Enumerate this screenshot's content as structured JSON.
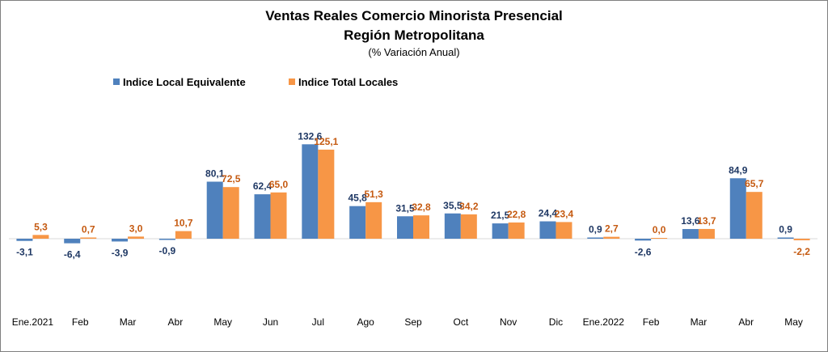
{
  "chart_data": {
    "type": "bar",
    "title": "Ventas Reales Comercio Minorista Presencial",
    "subtitle": "Región Metropolitana",
    "caption": "(% Variación Anual)",
    "categories": [
      "Ene.2021",
      "Feb",
      "Mar",
      "Abr",
      "May",
      "Jun",
      "Jul",
      "Ago",
      "Sep",
      "Oct",
      "Nov",
      "Dic",
      "Ene.2022",
      "Feb",
      "Mar",
      "Abr",
      "May"
    ],
    "series": [
      {
        "name": "Indice Local Equivalente",
        "color": "#4f81bd",
        "values": [
          -3.1,
          -6.4,
          -3.9,
          -0.9,
          80.1,
          62.4,
          132.6,
          45.8,
          31.5,
          35.5,
          21.5,
          24.4,
          0.9,
          -2.6,
          13.6,
          84.9,
          0.9
        ],
        "labels": [
          "-3,1",
          "-6,4",
          "-3,9",
          "-0,9",
          "80,1",
          "62,4",
          "132,6",
          "45,8",
          "31,5",
          "35,5",
          "21,5",
          "24,4",
          "0,9",
          "-2,6",
          "13,6",
          "84,9",
          "0,9"
        ]
      },
      {
        "name": "Indice Total Locales",
        "color": "#f79646",
        "values": [
          5.3,
          0.7,
          3.0,
          10.7,
          72.5,
          65.0,
          125.1,
          51.3,
          32.8,
          34.2,
          22.8,
          23.4,
          2.7,
          0.0,
          13.7,
          65.7,
          -2.2
        ],
        "labels": [
          "5,3",
          "0,7",
          "3,0",
          "10,7",
          "72,5",
          "65,0",
          "125,1",
          "51,3",
          "32,8",
          "34,2",
          "22,8",
          "23,4",
          "2,7",
          "0,0",
          "13,7",
          "65,7",
          "-2,2"
        ]
      }
    ],
    "legend_position": "top-left",
    "grid": false
  }
}
